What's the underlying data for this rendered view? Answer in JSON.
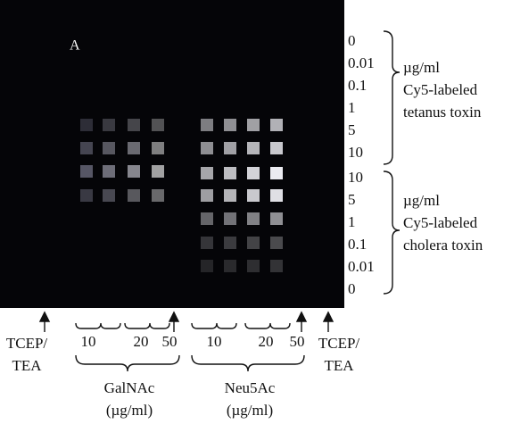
{
  "panel_label": "A",
  "right_labels": {
    "top_concentrations": [
      "0",
      "0.01",
      "0.1",
      "1",
      "5",
      "10"
    ],
    "top_description": [
      "µg/ml",
      "Cy5-labeled",
      "tetanus toxin"
    ],
    "bottom_concentrations": [
      "10",
      "5",
      "1",
      "0.1",
      "0.01",
      "0"
    ],
    "bottom_description": [
      "µg/ml",
      "Cy5-labeled",
      "cholera  toxin"
    ]
  },
  "bottom_labels": {
    "left_control": [
      "TCEP/",
      "TEA"
    ],
    "galnac_concentrations": [
      "10",
      "20",
      "50"
    ],
    "galnac_label": [
      "GalNAc",
      "(µg/ml)"
    ],
    "neu5ac_concentrations": [
      "10",
      "20",
      "50"
    ],
    "neu5ac_label": [
      "Neu5Ac",
      "(µg/ml)"
    ],
    "right_control": [
      "TCEP/",
      "TEA"
    ]
  }
}
